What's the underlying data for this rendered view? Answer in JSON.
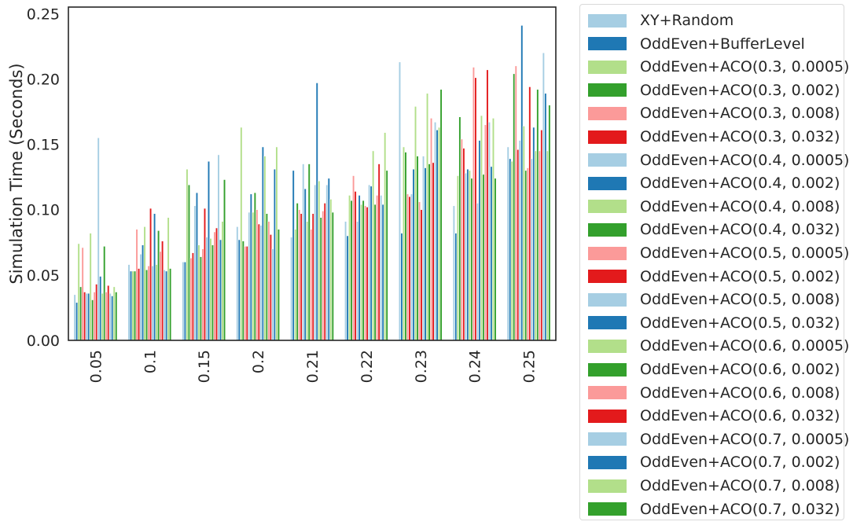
{
  "chart_data": {
    "type": "bar",
    "xlabel": "",
    "ylabel": "Simulation Time (Seconds)",
    "ylim": [
      0,
      0.255
    ],
    "yticks": [
      "0.00",
      "0.05",
      "0.10",
      "0.15",
      "0.20",
      "0.25"
    ],
    "ytick_values": [
      0,
      0.05,
      0.1,
      0.15,
      0.2,
      0.25
    ],
    "categories": [
      "0.05",
      "0.1",
      "0.15",
      "0.2",
      "0.21",
      "0.22",
      "0.23",
      "0.24",
      "0.25"
    ],
    "legend_position": "outside-right",
    "grid": false,
    "series": [
      {
        "name": "XY+Random",
        "color": "#a6cee3",
        "values": [
          0.035,
          0.058,
          0.06,
          0.087,
          0.079,
          0.091,
          0.213,
          0.103,
          0.148
        ]
      },
      {
        "name": "OddEven+BufferLevel",
        "color": "#1f78b4",
        "values": [
          0.029,
          0.053,
          0.06,
          0.077,
          0.13,
          0.08,
          0.082,
          0.082,
          0.139
        ]
      },
      {
        "name": "OddEven+ACO(0.3, 0.0005)",
        "color": "#b2df8a",
        "values": [
          0.074,
          0.053,
          0.131,
          0.163,
          0.085,
          0.111,
          0.148,
          0.126,
          0.137
        ]
      },
      {
        "name": "OddEven+ACO(0.3, 0.002)",
        "color": "#33a02c",
        "values": [
          0.041,
          0.053,
          0.119,
          0.076,
          0.105,
          0.107,
          0.144,
          0.171,
          0.204
        ]
      },
      {
        "name": "OddEven+ACO(0.3, 0.008)",
        "color": "#fb9a99",
        "values": [
          0.071,
          0.085,
          0.063,
          0.072,
          0.1,
          0.126,
          0.112,
          0.154,
          0.21
        ]
      },
      {
        "name": "OddEven+ACO(0.3, 0.032)",
        "color": "#e31a1c",
        "values": [
          0.037,
          0.055,
          0.067,
          0.072,
          0.097,
          0.114,
          0.11,
          0.147,
          0.146
        ]
      },
      {
        "name": "OddEven+ACO(0.4, 0.0005)",
        "color": "#a6cee3",
        "values": [
          0.036,
          0.066,
          0.103,
          0.098,
          0.135,
          0.091,
          0.112,
          0.128,
          0.153
        ]
      },
      {
        "name": "OddEven+ACO(0.4, 0.002)",
        "color": "#1f78b4",
        "values": [
          0.036,
          0.073,
          0.113,
          0.112,
          0.116,
          0.111,
          0.131,
          0.131,
          0.241
        ]
      },
      {
        "name": "OddEven+ACO(0.4, 0.008)",
        "color": "#b2df8a",
        "values": [
          0.082,
          0.087,
          0.073,
          0.098,
          0.091,
          0.104,
          0.179,
          0.13,
          0.164
        ]
      },
      {
        "name": "OddEven+ACO(0.4, 0.032)",
        "color": "#33a02c",
        "values": [
          0.031,
          0.054,
          0.064,
          0.113,
          0.135,
          0.107,
          0.141,
          0.124,
          0.13
        ]
      },
      {
        "name": "OddEven+ACO(0.5, 0.0005)",
        "color": "#fb9a99",
        "values": [
          0.037,
          0.057,
          0.07,
          0.1,
          0.085,
          0.103,
          0.106,
          0.209,
          0.132
        ]
      },
      {
        "name": "OddEven+ACO(0.5, 0.002)",
        "color": "#e31a1c",
        "values": [
          0.043,
          0.101,
          0.101,
          0.089,
          0.097,
          0.102,
          0.1,
          0.201,
          0.194
        ]
      },
      {
        "name": "OddEven+ACO(0.5, 0.008)",
        "color": "#a6cee3",
        "values": [
          0.155,
          0.057,
          0.079,
          0.088,
          0.119,
          0.119,
          0.141,
          0.105,
          0.139
        ]
      },
      {
        "name": "OddEven+ACO(0.5, 0.032)",
        "color": "#1f78b4",
        "values": [
          0.049,
          0.097,
          0.137,
          0.148,
          0.197,
          0.118,
          0.132,
          0.153,
          0.163
        ]
      },
      {
        "name": "OddEven+ACO(0.6, 0.0005)",
        "color": "#b2df8a",
        "values": [
          0.036,
          0.058,
          0.078,
          0.141,
          0.122,
          0.145,
          0.189,
          0.172,
          0.145
        ]
      },
      {
        "name": "OddEven+ACO(0.6, 0.002)",
        "color": "#33a02c",
        "values": [
          0.072,
          0.084,
          0.073,
          0.097,
          0.094,
          0.104,
          0.135,
          0.127,
          0.192
        ]
      },
      {
        "name": "OddEven+ACO(0.6, 0.008)",
        "color": "#fb9a99",
        "values": [
          0.037,
          0.068,
          0.083,
          0.091,
          0.099,
          0.111,
          0.17,
          0.165,
          0.145
        ]
      },
      {
        "name": "OddEven+ACO(0.6, 0.032)",
        "color": "#e31a1c",
        "values": [
          0.042,
          0.076,
          0.086,
          0.081,
          0.105,
          0.135,
          0.136,
          0.207,
          0.161
        ]
      },
      {
        "name": "OddEven+ACO(0.7, 0.0005)",
        "color": "#a6cee3",
        "values": [
          0.036,
          0.054,
          0.142,
          0.07,
          0.119,
          0.111,
          0.167,
          0.167,
          0.22
        ]
      },
      {
        "name": "OddEven+ACO(0.7, 0.002)",
        "color": "#1f78b4",
        "values": [
          0.034,
          0.053,
          0.077,
          0.131,
          0.124,
          0.104,
          0.161,
          0.133,
          0.189
        ]
      },
      {
        "name": "OddEven+ACO(0.7, 0.008)",
        "color": "#b2df8a",
        "values": [
          0.041,
          0.094,
          0.091,
          0.148,
          0.108,
          0.159,
          0.163,
          0.17,
          0.145
        ]
      },
      {
        "name": "OddEven+ACO(0.7, 0.032)",
        "color": "#33a02c",
        "values": [
          0.037,
          0.055,
          0.123,
          0.085,
          0.098,
          0.13,
          0.192,
          0.124,
          0.18
        ]
      }
    ]
  }
}
